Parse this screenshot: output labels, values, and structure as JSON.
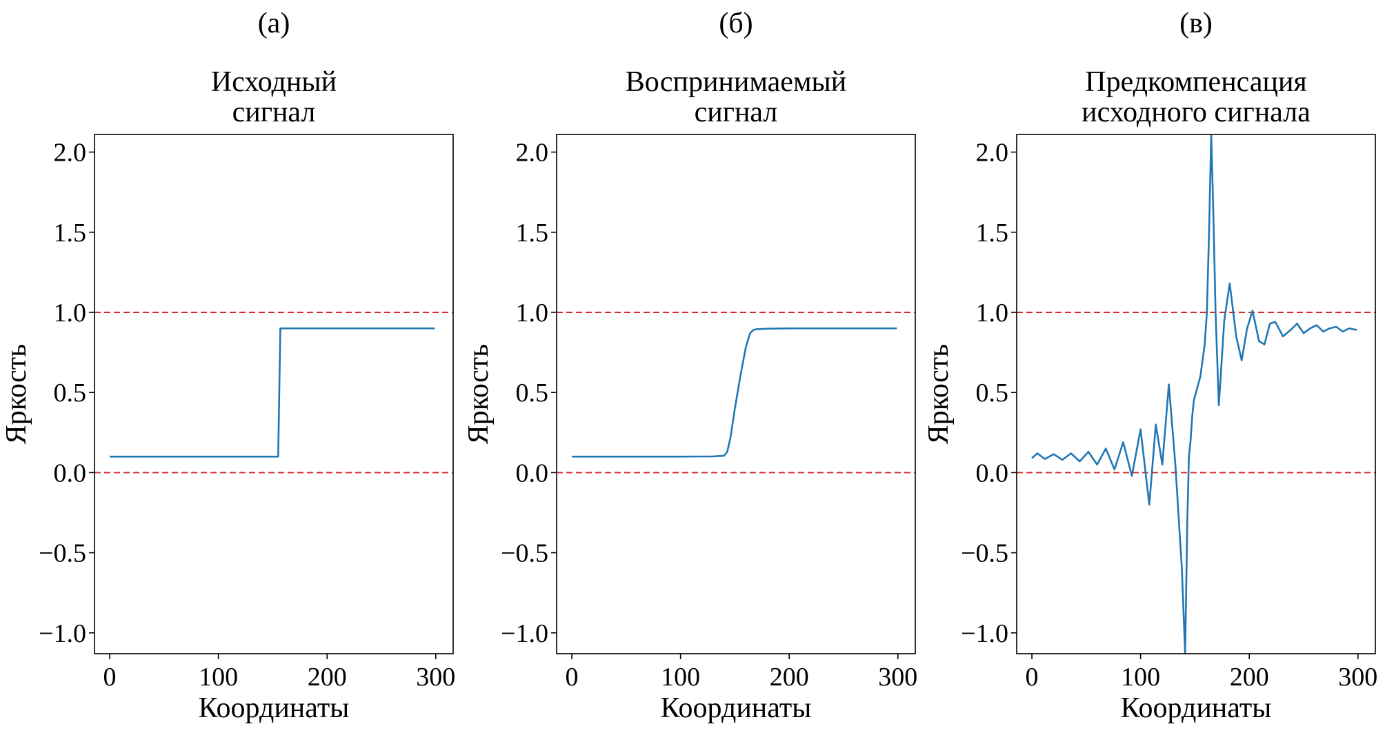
{
  "chart_data": [
    {
      "type": "line",
      "panel_label": "(а)",
      "title_lines": [
        "Исходный",
        "сигнал"
      ],
      "xlabel": "Координаты",
      "ylabel": "Яркость",
      "xlim": [
        -14,
        316
      ],
      "ylim": [
        -1.13,
        2.11
      ],
      "xticks": [
        0,
        100,
        200,
        300
      ],
      "yticks": [
        -1.0,
        -0.5,
        0.0,
        0.5,
        1.0,
        1.5,
        2.0
      ],
      "ytick_labels": [
        "−1.0",
        "−0.5",
        "0.0",
        "0.5",
        "1.0",
        "1.5",
        "2.0"
      ],
      "reference_lines": [
        0.0,
        1.0
      ],
      "grid": false,
      "series": [
        {
          "x": [
            0,
            20,
            40,
            60,
            80,
            100,
            120,
            140,
            155,
            156,
            157,
            170,
            200,
            230,
            260,
            299
          ],
          "y": [
            0.1,
            0.1,
            0.1,
            0.1,
            0.1,
            0.1,
            0.1,
            0.1,
            0.1,
            0.5,
            0.9,
            0.9,
            0.9,
            0.9,
            0.9,
            0.9
          ]
        }
      ]
    },
    {
      "type": "line",
      "panel_label": "(б)",
      "title_lines": [
        "Воспринимаемый",
        "сигнал"
      ],
      "xlabel": "Координаты",
      "ylabel": "Яркость",
      "xlim": [
        -14,
        316
      ],
      "ylim": [
        -1.13,
        2.11
      ],
      "xticks": [
        0,
        100,
        200,
        300
      ],
      "yticks": [
        -1.0,
        -0.5,
        0.0,
        0.5,
        1.0,
        1.5,
        2.0
      ],
      "ytick_labels": [
        "−1.0",
        "−0.5",
        "0.0",
        "0.5",
        "1.0",
        "1.5",
        "2.0"
      ],
      "reference_lines": [
        0.0,
        1.0
      ],
      "grid": false,
      "series": [
        {
          "x": [
            0,
            50,
            100,
            130,
            140,
            143,
            146,
            150,
            155,
            160,
            164,
            167,
            170,
            180,
            200,
            250,
            299
          ],
          "y": [
            0.1,
            0.1,
            0.1,
            0.101,
            0.105,
            0.13,
            0.22,
            0.4,
            0.6,
            0.78,
            0.87,
            0.89,
            0.895,
            0.898,
            0.9,
            0.9,
            0.9
          ]
        }
      ]
    },
    {
      "type": "line",
      "panel_label": "(в)",
      "title_lines": [
        "Предкомпенсация",
        "исходного сигнала"
      ],
      "xlabel": "Координаты",
      "ylabel": "Яркость",
      "xlim": [
        -14,
        316
      ],
      "ylim": [
        -1.13,
        2.11
      ],
      "xticks": [
        0,
        100,
        200,
        300
      ],
      "yticks": [
        -1.0,
        -0.5,
        0.0,
        0.5,
        1.0,
        1.5,
        2.0
      ],
      "ytick_labels": [
        "−1.0",
        "−0.5",
        "0.0",
        "0.5",
        "1.0",
        "1.5",
        "2.0"
      ],
      "reference_lines": [
        0.0,
        1.0
      ],
      "grid": false,
      "series": [
        {
          "x": [
            0,
            5,
            12,
            20,
            28,
            36,
            44,
            52,
            60,
            68,
            76,
            84,
            92,
            100,
            108,
            114,
            120,
            126,
            132,
            138,
            141,
            143,
            144.5,
            146,
            147.5,
            149,
            151,
            153,
            155,
            157,
            159,
            161,
            163,
            165,
            167,
            169,
            172,
            177,
            182,
            188,
            193,
            198,
            203,
            209,
            214,
            219,
            224,
            231,
            238,
            244,
            250,
            256,
            262,
            268,
            274,
            280,
            286,
            292,
            299
          ],
          "y": [
            0.09,
            0.12,
            0.085,
            0.115,
            0.08,
            0.12,
            0.07,
            0.13,
            0.05,
            0.15,
            0.02,
            0.19,
            -0.02,
            0.27,
            -0.2,
            0.3,
            0.05,
            0.55,
            0.05,
            -0.6,
            -1.13,
            -0.3,
            0.1,
            0.2,
            0.35,
            0.45,
            0.5,
            0.55,
            0.6,
            0.7,
            0.8,
            1.0,
            1.5,
            2.11,
            1.6,
            1.0,
            0.42,
            0.95,
            1.18,
            0.85,
            0.7,
            0.9,
            1.01,
            0.82,
            0.8,
            0.93,
            0.94,
            0.85,
            0.89,
            0.93,
            0.87,
            0.9,
            0.92,
            0.88,
            0.9,
            0.91,
            0.88,
            0.9,
            0.89
          ]
        }
      ]
    }
  ],
  "colors": {
    "series_line": "#1f77b4",
    "reference_line": "#d62728",
    "frame": "#000000"
  }
}
